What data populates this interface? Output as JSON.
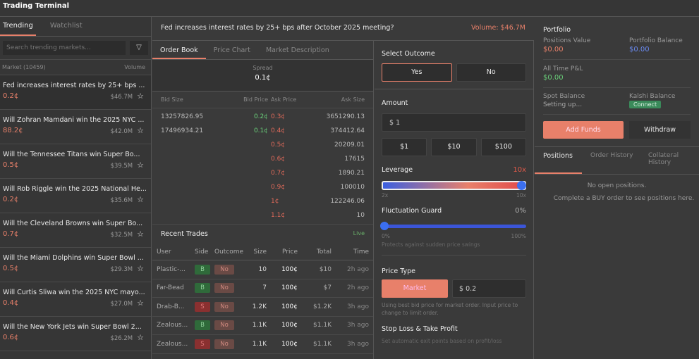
{
  "title": "Trading Terminal",
  "sidebar": {
    "tabs": [
      "Trending",
      "Watchlist"
    ],
    "search_placeholder": "Search trending markets...",
    "filter_icon": "filter-icon",
    "col_market": "Market (10459)",
    "col_volume": "Volume",
    "markets": [
      {
        "title": "Fed increases interest rates by 25+ bps ...",
        "price": "0.2¢",
        "volume": "$46.7M"
      },
      {
        "title": "Will Zohran Mamdani win the 2025 NYC ...",
        "price": "88.2¢",
        "volume": "$42.0M"
      },
      {
        "title": "Will the Tennessee Titans win Super Bo...",
        "price": "0.5¢",
        "volume": "$39.5M"
      },
      {
        "title": "Will Rob Riggle win the 2025 National He...",
        "price": "0.2¢",
        "volume": "$35.6M"
      },
      {
        "title": "Will the Cleveland Browns win Super Bo...",
        "price": "0.7¢",
        "volume": "$32.5M"
      },
      {
        "title": "Will the Miami Dolphins win Super Bowl ...",
        "price": "0.5¢",
        "volume": "$29.3M"
      },
      {
        "title": "Will Curtis Sliwa win the 2025 NYC mayo...",
        "price": "0.4¢",
        "volume": "$27.0M"
      },
      {
        "title": "Will the New York Jets win Super Bowl 2...",
        "price": "0.6¢",
        "volume": "$26.2M"
      }
    ]
  },
  "market": {
    "title": "Fed increases interest rates by 25+ bps after October 2025 meeting?",
    "volume": "Volume: $46.7M"
  },
  "center": {
    "tabs": [
      "Order Book",
      "Price Chart",
      "Market Description"
    ],
    "spread_label": "Spread",
    "spread": "0.1¢",
    "ob_headers": [
      "Bid Size",
      "Bid Price",
      "Ask Price",
      "Ask Size"
    ],
    "ob_rows": [
      [
        "13257826.95",
        "0.2¢",
        "0.3¢",
        "3651290.13"
      ],
      [
        "17496934.21",
        "0.1¢",
        "0.4¢",
        "374412.64"
      ],
      [
        "",
        "",
        "0.5¢",
        "20209.01"
      ],
      [
        "",
        "",
        "0.6¢",
        "17615"
      ],
      [
        "",
        "",
        "0.7¢",
        "1890.21"
      ],
      [
        "",
        "",
        "0.9¢",
        "100010"
      ],
      [
        "",
        "",
        "1¢",
        "122246.06"
      ],
      [
        "",
        "",
        "1.1¢",
        "10"
      ]
    ],
    "recent_title": "Recent Trades",
    "live": "Live",
    "tr_headers": [
      "User",
      "Side",
      "Outcome",
      "Size",
      "Price",
      "Total",
      "Time"
    ],
    "trades": [
      [
        "Plastic-...",
        "B",
        "No",
        "10",
        "100¢",
        "$10",
        "2h ago"
      ],
      [
        "Far-Bead",
        "B",
        "No",
        "7",
        "100¢",
        "$7",
        "2h ago"
      ],
      [
        "Drab-B...",
        "S",
        "No",
        "1.2K",
        "100¢",
        "$1.2K",
        "3h ago"
      ],
      [
        "Zealous...",
        "B",
        "No",
        "1.1K",
        "100¢",
        "$1.1K",
        "3h ago"
      ],
      [
        "Zealous...",
        "S",
        "No",
        "1.1K",
        "100¢",
        "$1.1K",
        "3h ago"
      ]
    ]
  },
  "trade": {
    "select_outcome": "Select Outcome",
    "yes": "Yes",
    "no": "No",
    "amount_label": "Amount",
    "amount": "$ 1",
    "quick": [
      "$1",
      "$10",
      "$100"
    ],
    "leverage_label": "Leverage",
    "leverage": "10x",
    "lev_min": "2x",
    "lev_max": "10x",
    "leverage_value": 10,
    "guard_label": "Fluctuation Guard",
    "guard": "0%",
    "guard_min": "0%",
    "guard_max": "100%",
    "guard_value": 0,
    "guard_hint": "Protects against sudden price swings",
    "price_type_label": "Price Type",
    "market_btn": "Market",
    "price": "$ 0.2",
    "price_hint": "Using best bid price for market order. Input price to change to limit order.",
    "sltp_label": "Stop Loss & Take Profit",
    "sltp_hint": "Set automatic exit points based on profit/loss"
  },
  "portfolio": {
    "title": "Portfolio",
    "positions_value_label": "Positions Value",
    "positions_value": "$0.00",
    "balance_label": "Portfolio Balance",
    "balance": "$0.00",
    "pnl_label": "All Time P&L",
    "pnl": "$0.00",
    "spot_label": "Spot Balance",
    "spot": "Setting up...",
    "kalshi_label": "Kalshi Balance",
    "connect": "Connect",
    "add_funds": "Add Funds",
    "withdraw": "Withdraw",
    "tabs": [
      "Positions",
      "Order History",
      "Collateral History"
    ],
    "empty": "No open positions.",
    "empty_hint": "Complete a BUY order to see positions here."
  },
  "colors": {
    "accent": "#e8806a",
    "green": "#6ad07a",
    "blue": "#3b5fe0"
  }
}
